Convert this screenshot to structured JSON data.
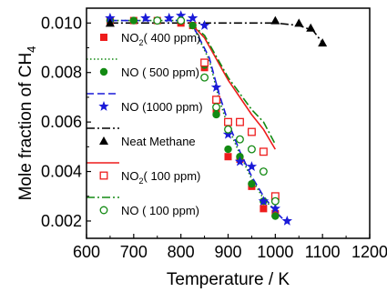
{
  "chart_data": {
    "type": "scatter",
    "xlabel": "Temperature / K",
    "ylabel_main": "Mole fraction of CH",
    "ylabel_sub": "4",
    "xlim": [
      600,
      1200
    ],
    "ylim": [
      0.0013,
      0.0106
    ],
    "xticks": [
      600,
      700,
      800,
      900,
      1000,
      1100,
      1200
    ],
    "yticks": [
      0.002,
      0.004,
      0.006,
      0.008,
      0.01
    ],
    "ytick_labels": [
      "0.002",
      "0.004",
      "0.006",
      "0.008",
      "0.010"
    ],
    "grid": false,
    "legend_position": "left",
    "series": [
      {
        "name": "NO2( 400 ppm)",
        "name_main": "NO",
        "name_sub": "2",
        "name_rest": "( 400 ppm)",
        "marker": "square-filled",
        "color": "#ee1c1c",
        "x": [
          650,
          700,
          750,
          800,
          825,
          850,
          875,
          900,
          925,
          950,
          975,
          1000
        ],
        "y": [
          0.0101,
          0.0101,
          0.0101,
          0.01,
          0.0099,
          0.0082,
          0.0064,
          0.0046,
          0.0045,
          0.0034,
          0.0025,
          0.0023
        ]
      },
      {
        "name": "NO ( 500 ppm)",
        "marker": "circle-filled",
        "color": "#138a13",
        "x": [
          650,
          700,
          750,
          800,
          825,
          850,
          875,
          900,
          925,
          950,
          975,
          1000
        ],
        "y": [
          0.0101,
          0.0101,
          0.0101,
          0.0101,
          0.0099,
          0.0083,
          0.0063,
          0.0049,
          0.0046,
          0.0035,
          0.0028,
          0.0022
        ]
      },
      {
        "name": "NO (1000 ppm)",
        "marker": "star",
        "color": "#1a1ad8",
        "x": [
          650,
          725,
          775,
          800,
          825,
          850,
          875,
          900,
          925,
          950,
          975,
          1000,
          1025
        ],
        "y": [
          0.0102,
          0.0102,
          0.0102,
          0.0103,
          0.0102,
          0.0099,
          0.0074,
          0.0055,
          0.0044,
          0.0042,
          0.0028,
          0.0025,
          0.002
        ]
      },
      {
        "name": "Neat Methane",
        "marker": "triangle-filled",
        "color": "#000000",
        "x": [
          650,
          1000,
          1050,
          1075,
          1100
        ],
        "y": [
          0.01,
          0.0101,
          0.01,
          0.0098,
          0.0092
        ]
      },
      {
        "name": "NO2( 100 ppm)",
        "name_main": "NO",
        "name_sub": "2",
        "name_rest": "( 100 ppm)",
        "marker": "square-open",
        "color": "#ee1c1c",
        "x": [
          850,
          875,
          900,
          925,
          950,
          975,
          1000
        ],
        "y": [
          0.0084,
          0.0069,
          0.006,
          0.006,
          0.0056,
          0.0048,
          0.003
        ]
      },
      {
        "name": "NO ( 100 ppm)",
        "marker": "circle-open",
        "color": "#138a13",
        "x": [
          750,
          800,
          850,
          875,
          900,
          925,
          950,
          975,
          1000
        ],
        "y": [
          0.0101,
          0.0101,
          0.0078,
          0.0066,
          0.0057,
          0.0053,
          0.0049,
          0.004,
          0.0028
        ]
      }
    ],
    "lines": [
      {
        "style": "dotted",
        "color": "#138a13",
        "x": [
          650,
          820,
          860,
          880,
          900,
          925,
          950,
          975,
          1000
        ],
        "y": [
          0.0101,
          0.0101,
          0.0085,
          0.007,
          0.0058,
          0.0047,
          0.0037,
          0.0029,
          0.0024
        ]
      },
      {
        "style": "dash",
        "color": "#1a1ad8",
        "x": [
          650,
          820,
          860,
          880,
          900,
          925,
          950,
          975,
          1000,
          1015
        ],
        "y": [
          0.0101,
          0.0101,
          0.0086,
          0.0072,
          0.006,
          0.0048,
          0.0038,
          0.003,
          0.0024,
          0.0021
        ]
      },
      {
        "style": "dashdot",
        "color": "#000000",
        "x": [
          650,
          800,
          950,
          1000,
          1050,
          1080,
          1100
        ],
        "y": [
          0.01,
          0.01,
          0.01,
          0.01,
          0.0099,
          0.0097,
          0.0092
        ]
      },
      {
        "style": "solid",
        "color": "#ee1c1c",
        "x": [
          820,
          850,
          900,
          950,
          975,
          1000
        ],
        "y": [
          0.01,
          0.0094,
          0.0077,
          0.0063,
          0.0057,
          0.0049
        ]
      },
      {
        "style": "dashdot",
        "color": "#138a13",
        "x": [
          820,
          850,
          900,
          950,
          975,
          1000
        ],
        "y": [
          0.01,
          0.0095,
          0.0078,
          0.0065,
          0.006,
          0.0051
        ]
      }
    ],
    "legend": [
      {
        "series": 0,
        "line": "dotted",
        "line_color": "#138a13"
      },
      {
        "series": 1,
        "line": "dash",
        "line_color": "#1a1ad8"
      },
      {
        "series": 2,
        "line": "dashdot",
        "line_color": "#000000"
      },
      {
        "series": 3,
        "line": "solid",
        "line_color": "#ee1c1c"
      },
      {
        "series": 4,
        "line": "dashdot",
        "line_color": "#138a13"
      },
      {
        "series": 5,
        "line": "none",
        "line_color": ""
      }
    ]
  }
}
